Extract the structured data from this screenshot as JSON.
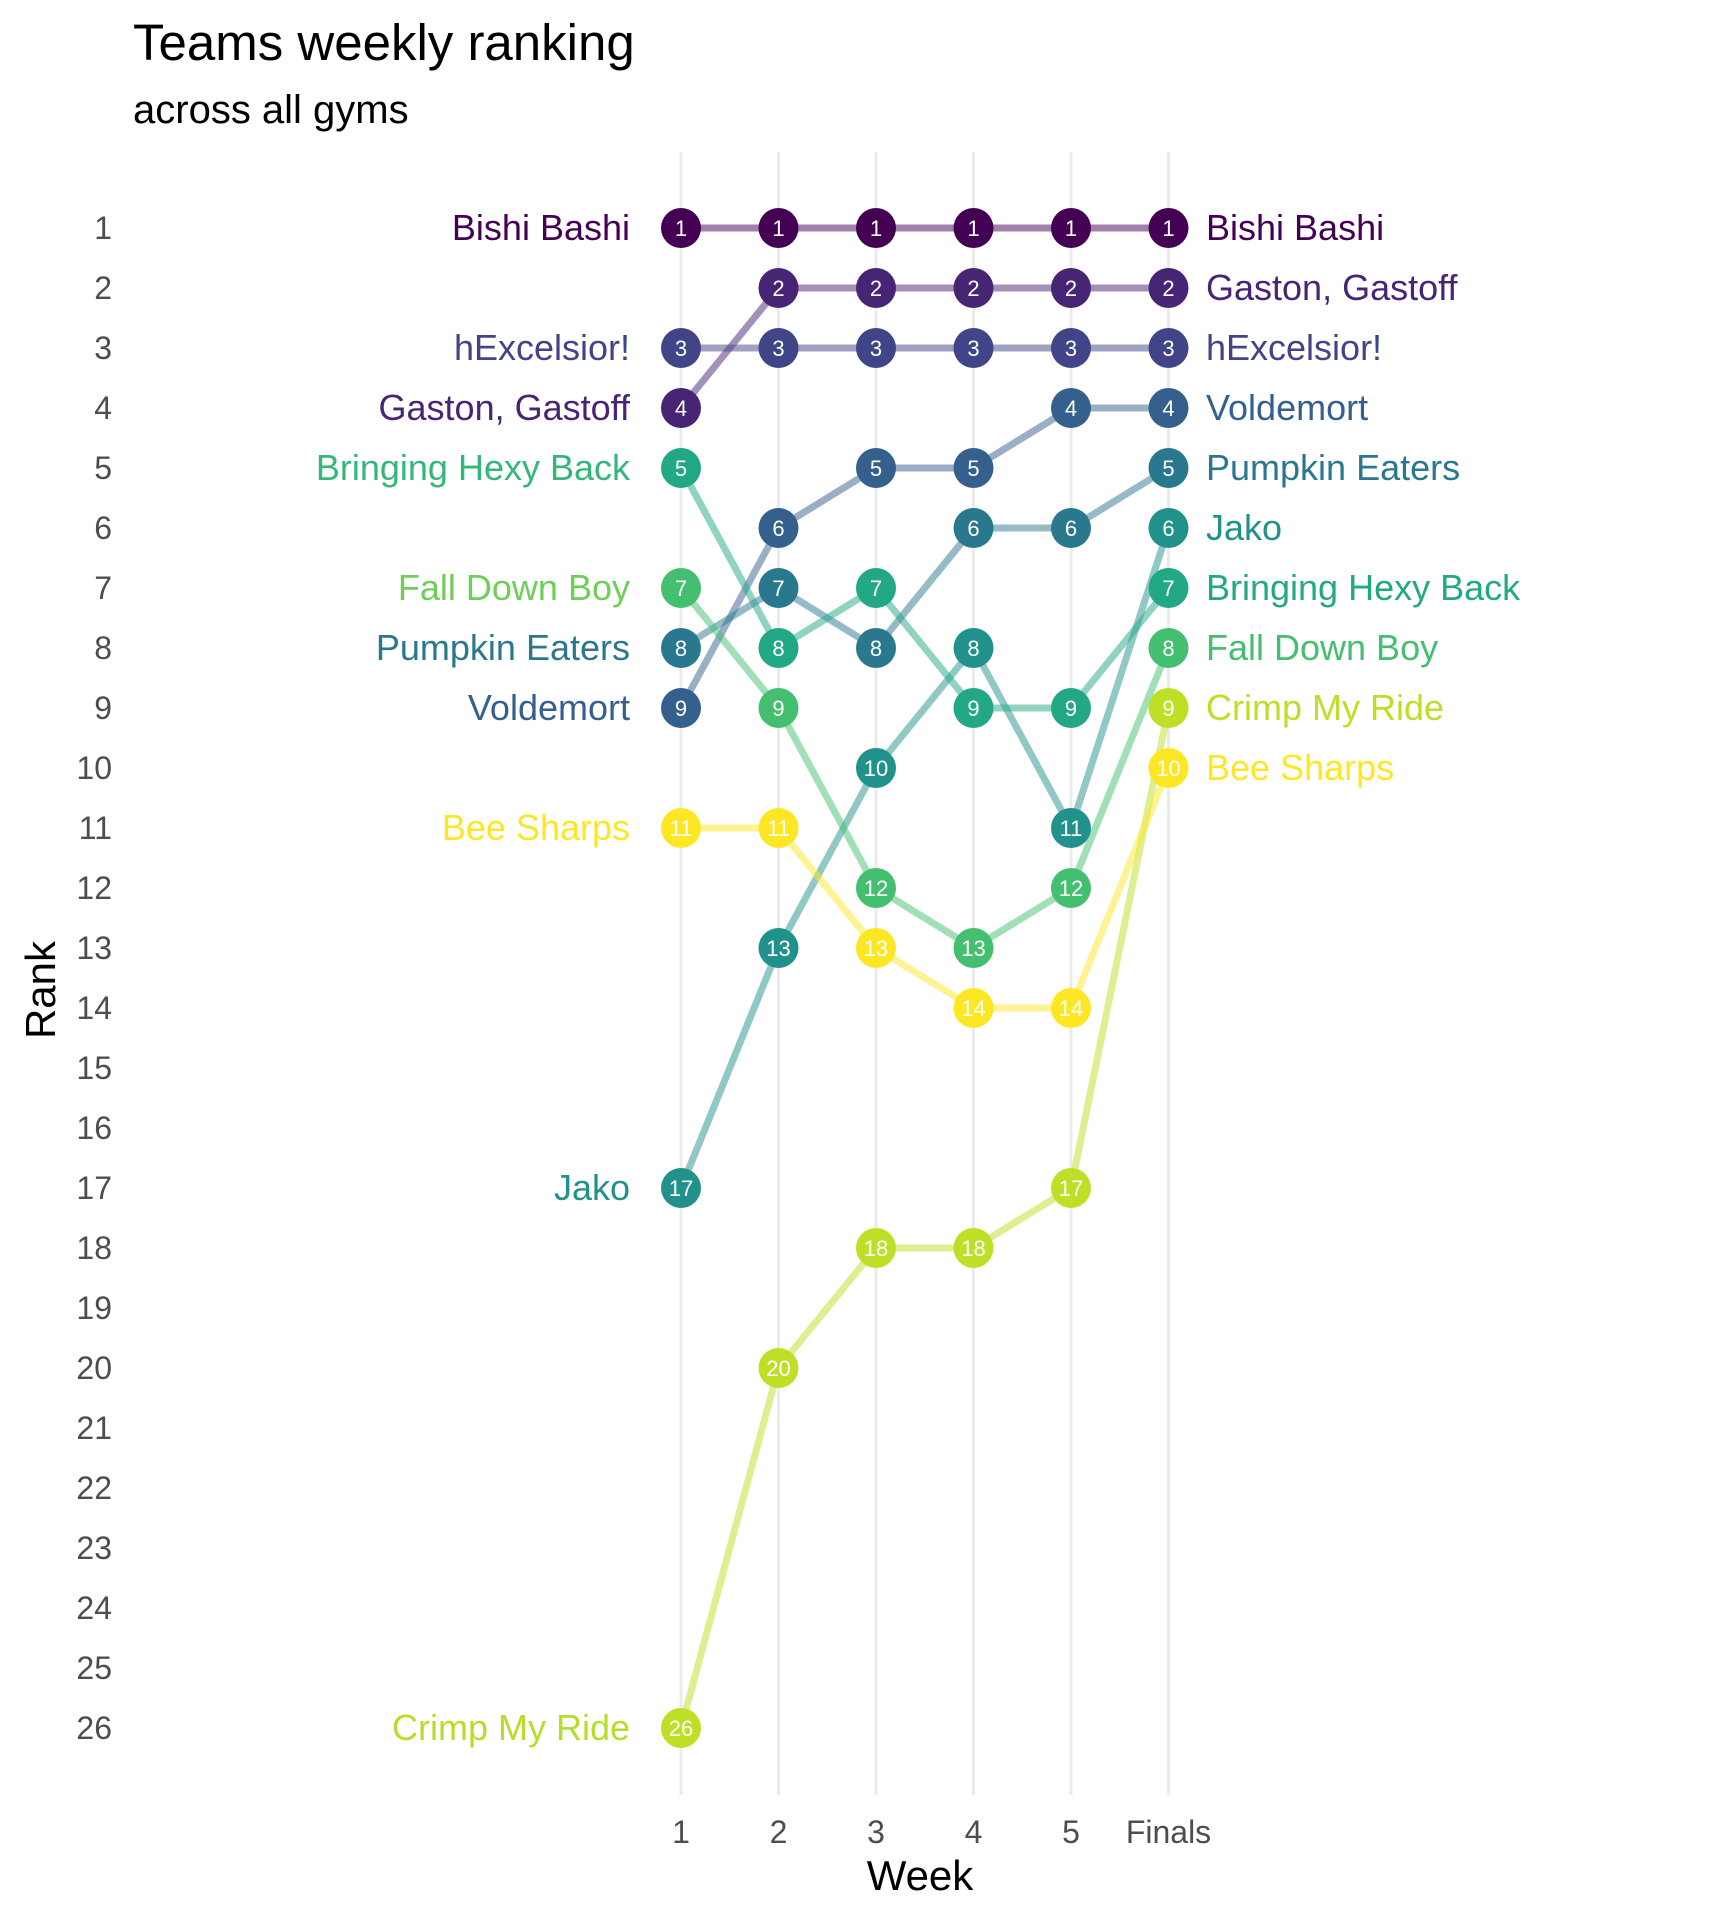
{
  "chart_data": {
    "type": "line",
    "title": "Teams weekly ranking",
    "subtitle": "across all gyms",
    "xlabel": "Week",
    "ylabel": "Rank",
    "categories": [
      "1",
      "2",
      "3",
      "4",
      "5",
      "Finals"
    ],
    "y_ticks": [
      "1",
      "2",
      "3",
      "4",
      "5",
      "6",
      "7",
      "8",
      "9",
      "10",
      "11",
      "12",
      "13",
      "14",
      "15",
      "16",
      "17",
      "18",
      "19",
      "20",
      "21",
      "22",
      "23",
      "24",
      "25",
      "26"
    ],
    "ylim": [
      1,
      26
    ],
    "y_reversed": true,
    "grid": "vertical lines at each week",
    "legend": "none (series labelled at both ends)",
    "series": [
      {
        "name": "Bishi Bashi",
        "color": "#440154",
        "values": [
          1,
          1,
          1,
          1,
          1,
          1
        ]
      },
      {
        "name": "Gaston, Gastoff",
        "color": "#482475",
        "values": [
          4,
          2,
          2,
          2,
          2,
          2
        ]
      },
      {
        "name": "hExcelsior!",
        "color": "#414487",
        "values": [
          3,
          3,
          3,
          3,
          3,
          3
        ]
      },
      {
        "name": "Voldemort",
        "color": "#355f8d",
        "values": [
          9,
          6,
          5,
          5,
          4,
          4
        ]
      },
      {
        "name": "Pumpkin Eaters",
        "color": "#2a788e",
        "values": [
          8,
          7,
          8,
          6,
          6,
          5
        ]
      },
      {
        "name": "Jako",
        "color": "#21918c",
        "values": [
          17,
          13,
          10,
          8,
          11,
          6
        ]
      },
      {
        "name": "Bringing Hexy Back",
        "color": "#22a884",
        "values": [
          5,
          8,
          7,
          9,
          9,
          7
        ]
      },
      {
        "name": "Fall Down Boy",
        "color": "#44bf70",
        "values": [
          7,
          9,
          12,
          13,
          12,
          8
        ]
      },
      {
        "name": "Crimp My Ride",
        "color": "#bddf26",
        "values": [
          26,
          20,
          18,
          18,
          17,
          9
        ]
      },
      {
        "name": "Bee Sharps",
        "color": "#fde725",
        "values": [
          11,
          11,
          13,
          14,
          14,
          10
        ]
      }
    ],
    "left_labels": [
      {
        "text": "Bishi Bashi",
        "rank": 1,
        "color": "#440154"
      },
      {
        "text": "hExcelsior!",
        "rank": 3,
        "color": "#414487"
      },
      {
        "text": "Gaston, Gastoff",
        "rank": 4,
        "color": "#482475"
      },
      {
        "text": "Bringing Hexy Back",
        "rank": 5,
        "color": "#35b779"
      },
      {
        "text": "Fall Down Boy",
        "rank": 7,
        "color": "#6ece58"
      },
      {
        "text": "Pumpkin Eaters",
        "rank": 8,
        "color": "#2a788e"
      },
      {
        "text": "Voldemort",
        "rank": 9,
        "color": "#355f8d"
      },
      {
        "text": "Bee Sharps",
        "rank": 11,
        "color": "#fde725"
      },
      {
        "text": "Jako",
        "rank": 17,
        "color": "#21918c"
      },
      {
        "text": "Crimp My Ride",
        "rank": 26,
        "color": "#b5de2b"
      }
    ],
    "right_labels": [
      {
        "text": "Bishi Bashi",
        "rank": 1,
        "color": "#440154"
      },
      {
        "text": "Gaston, Gastoff",
        "rank": 2,
        "color": "#482475"
      },
      {
        "text": "hExcelsior!",
        "rank": 3,
        "color": "#414487"
      },
      {
        "text": "Voldemort",
        "rank": 4,
        "color": "#355f8d"
      },
      {
        "text": "Pumpkin Eaters",
        "rank": 5,
        "color": "#2a788e"
      },
      {
        "text": "Jako",
        "rank": 6,
        "color": "#21918c"
      },
      {
        "text": "Bringing Hexy Back",
        "rank": 7,
        "color": "#22a884"
      },
      {
        "text": "Fall Down Boy",
        "rank": 8,
        "color": "#44bf70"
      },
      {
        "text": "Crimp My Ride",
        "rank": 9,
        "color": "#bddf26"
      },
      {
        "text": "Bee Sharps",
        "rank": 10,
        "color": "#fde725"
      }
    ]
  }
}
